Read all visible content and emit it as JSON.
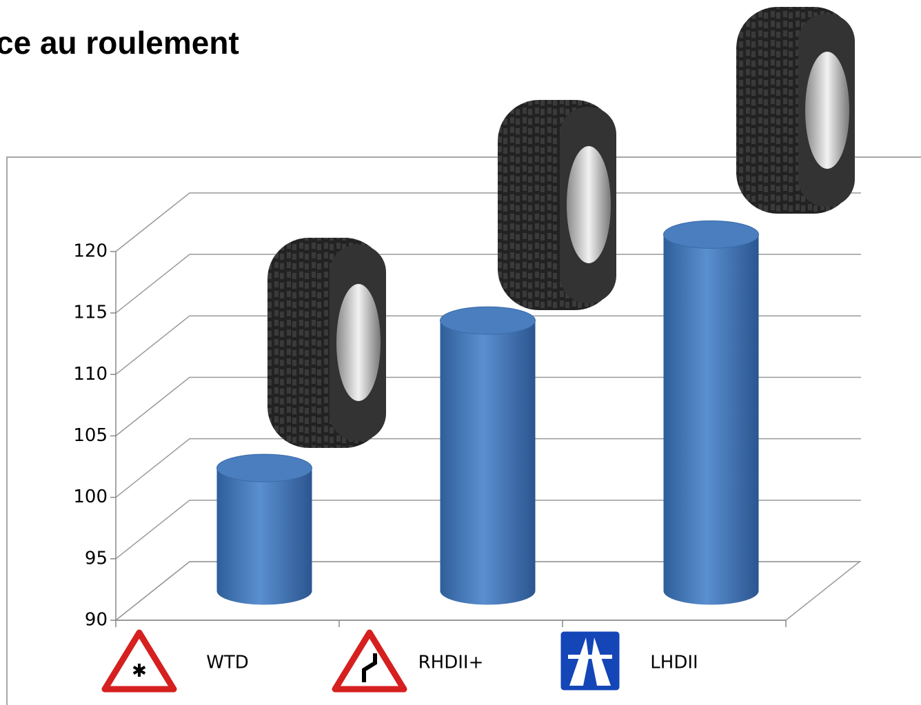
{
  "chart_data": {
    "type": "bar",
    "title": "ce au roulement",
    "categories": [
      "WTD",
      "RHDII+",
      "LHDII"
    ],
    "values": [
      100,
      112,
      119
    ],
    "color": "#4a7ebf",
    "ylim": [
      90,
      120
    ],
    "yticks": [
      90,
      95,
      100,
      105,
      110,
      115,
      120
    ],
    "grid": true
  }
}
